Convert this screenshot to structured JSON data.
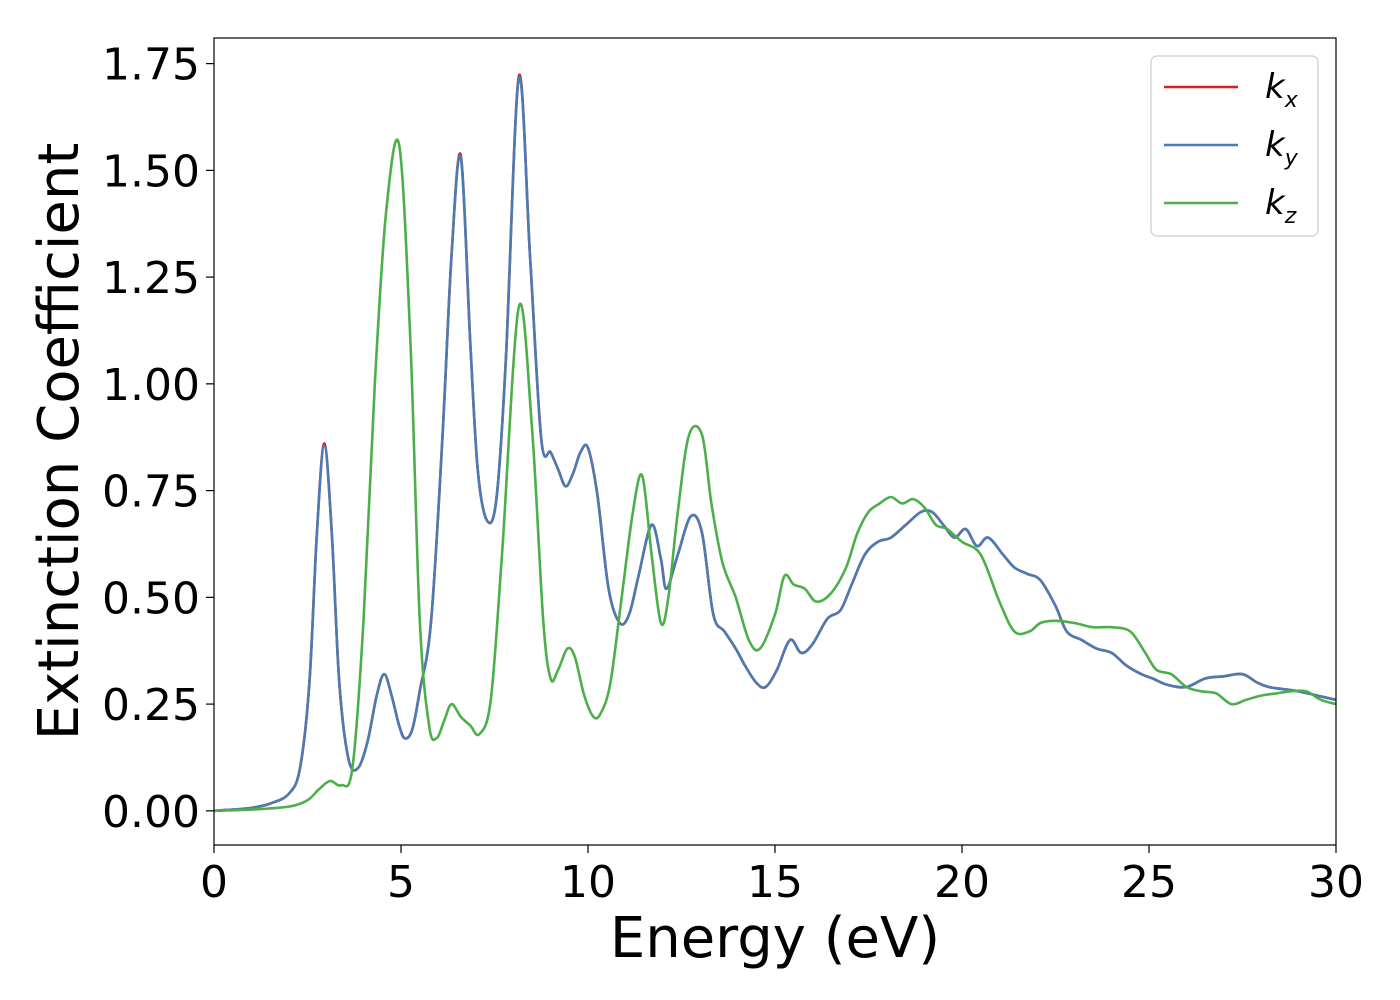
{
  "chart_data": {
    "type": "line",
    "title": "",
    "xlabel": "Energy (eV)",
    "ylabel": "Extinction Coefficient",
    "xlim": [
      0,
      30
    ],
    "ylim": [
      -0.08,
      1.81
    ],
    "xticks": [
      0,
      5,
      10,
      15,
      20,
      25,
      30
    ],
    "xtick_labels": [
      "0",
      "5",
      "10",
      "15",
      "20",
      "25",
      "30"
    ],
    "yticks": [
      0.0,
      0.25,
      0.5,
      0.75,
      1.0,
      1.25,
      1.5,
      1.75
    ],
    "ytick_labels": [
      "0.00",
      "0.25",
      "0.50",
      "0.75",
      "1.00",
      "1.25",
      "1.50",
      "1.75"
    ],
    "grid": false,
    "legend": "top-right",
    "series": [
      {
        "name": "k",
        "subscript": "x",
        "color": "#e41a1c",
        "x": [
          0,
          0.5,
          1.0,
          1.5,
          2.0,
          2.3,
          2.55,
          2.75,
          2.95,
          3.15,
          3.35,
          3.6,
          3.85,
          4.1,
          4.35,
          4.55,
          4.75,
          4.95,
          5.1,
          5.3,
          5.5,
          5.8,
          6.1,
          6.35,
          6.6,
          6.85,
          7.05,
          7.3,
          7.55,
          7.8,
          8.15,
          8.45,
          8.75,
          9.0,
          9.2,
          9.4,
          9.6,
          9.8,
          10.0,
          10.25,
          10.55,
          10.85,
          11.1,
          11.35,
          11.7,
          11.95,
          12.1,
          12.4,
          12.75,
          13.05,
          13.35,
          13.65,
          13.95,
          14.2,
          14.5,
          14.75,
          15.05,
          15.4,
          15.7,
          16.0,
          16.4,
          16.75,
          17.05,
          17.4,
          17.75,
          18.1,
          18.5,
          18.9,
          19.2,
          19.5,
          19.8,
          20.1,
          20.4,
          20.7,
          21.1,
          21.4,
          21.75,
          22.1,
          22.5,
          22.8,
          23.2,
          23.6,
          24.0,
          24.4,
          24.8,
          25.1,
          25.5,
          26.0,
          26.5,
          27.0,
          27.5,
          27.9,
          28.2,
          28.6,
          29.0,
          29.5,
          30.0
        ],
        "y": [
          0.0,
          0.003,
          0.007,
          0.017,
          0.04,
          0.1,
          0.3,
          0.65,
          0.86,
          0.65,
          0.3,
          0.12,
          0.1,
          0.16,
          0.27,
          0.32,
          0.27,
          0.2,
          0.17,
          0.19,
          0.28,
          0.44,
          0.86,
          1.3,
          1.535,
          1.1,
          0.8,
          0.68,
          0.73,
          1.05,
          1.72,
          1.3,
          0.87,
          0.84,
          0.8,
          0.76,
          0.79,
          0.84,
          0.85,
          0.74,
          0.52,
          0.44,
          0.46,
          0.55,
          0.67,
          0.59,
          0.52,
          0.6,
          0.69,
          0.65,
          0.46,
          0.42,
          0.38,
          0.34,
          0.3,
          0.29,
          0.33,
          0.4,
          0.37,
          0.39,
          0.45,
          0.47,
          0.53,
          0.6,
          0.63,
          0.64,
          0.67,
          0.7,
          0.7,
          0.67,
          0.64,
          0.66,
          0.62,
          0.64,
          0.6,
          0.57,
          0.555,
          0.54,
          0.48,
          0.42,
          0.4,
          0.38,
          0.37,
          0.34,
          0.32,
          0.31,
          0.295,
          0.29,
          0.31,
          0.315,
          0.32,
          0.3,
          0.29,
          0.285,
          0.28,
          0.27,
          0.26
        ]
      },
      {
        "name": "k",
        "subscript": "y",
        "color": "#4a7cb3",
        "x": [
          0,
          0.5,
          1.0,
          1.5,
          2.0,
          2.3,
          2.55,
          2.75,
          2.95,
          3.15,
          3.35,
          3.6,
          3.85,
          4.1,
          4.35,
          4.55,
          4.75,
          4.95,
          5.1,
          5.3,
          5.5,
          5.8,
          6.1,
          6.35,
          6.6,
          6.85,
          7.05,
          7.3,
          7.55,
          7.8,
          8.15,
          8.45,
          8.75,
          9.0,
          9.2,
          9.4,
          9.6,
          9.8,
          10.0,
          10.25,
          10.55,
          10.85,
          11.1,
          11.35,
          11.7,
          11.95,
          12.1,
          12.4,
          12.75,
          13.05,
          13.35,
          13.65,
          13.95,
          14.2,
          14.5,
          14.75,
          15.05,
          15.4,
          15.7,
          16.0,
          16.4,
          16.75,
          17.05,
          17.4,
          17.75,
          18.1,
          18.5,
          18.9,
          19.2,
          19.5,
          19.8,
          20.1,
          20.4,
          20.7,
          21.1,
          21.4,
          21.75,
          22.1,
          22.5,
          22.8,
          23.2,
          23.6,
          24.0,
          24.4,
          24.8,
          25.1,
          25.5,
          26.0,
          26.5,
          27.0,
          27.5,
          27.9,
          28.2,
          28.6,
          29.0,
          29.5,
          30.0
        ],
        "y": [
          0.0,
          0.003,
          0.007,
          0.017,
          0.04,
          0.1,
          0.3,
          0.65,
          0.855,
          0.65,
          0.3,
          0.12,
          0.1,
          0.16,
          0.27,
          0.32,
          0.27,
          0.2,
          0.17,
          0.19,
          0.28,
          0.44,
          0.86,
          1.3,
          1.53,
          1.1,
          0.8,
          0.68,
          0.73,
          1.05,
          1.715,
          1.3,
          0.87,
          0.84,
          0.8,
          0.76,
          0.79,
          0.84,
          0.85,
          0.74,
          0.52,
          0.44,
          0.46,
          0.55,
          0.67,
          0.59,
          0.52,
          0.6,
          0.69,
          0.65,
          0.46,
          0.42,
          0.38,
          0.34,
          0.3,
          0.29,
          0.33,
          0.4,
          0.37,
          0.39,
          0.45,
          0.47,
          0.53,
          0.6,
          0.63,
          0.64,
          0.67,
          0.7,
          0.7,
          0.67,
          0.64,
          0.66,
          0.62,
          0.64,
          0.6,
          0.57,
          0.555,
          0.54,
          0.48,
          0.42,
          0.4,
          0.38,
          0.37,
          0.34,
          0.32,
          0.31,
          0.295,
          0.29,
          0.31,
          0.315,
          0.32,
          0.3,
          0.29,
          0.285,
          0.28,
          0.27,
          0.26
        ]
      },
      {
        "name": "k",
        "subscript": "z",
        "color": "#4daf4a",
        "x": [
          0,
          1.0,
          2.0,
          2.5,
          2.8,
          3.1,
          3.4,
          3.7,
          4.0,
          4.3,
          4.6,
          4.95,
          5.25,
          5.5,
          5.75,
          5.95,
          6.15,
          6.35,
          6.6,
          6.85,
          7.1,
          7.4,
          7.7,
          8.15,
          8.5,
          8.8,
          9.0,
          9.2,
          9.45,
          9.65,
          9.9,
          10.15,
          10.35,
          10.6,
          10.9,
          11.2,
          11.45,
          11.7,
          11.95,
          12.15,
          12.4,
          12.7,
          13.05,
          13.3,
          13.6,
          13.95,
          14.3,
          14.6,
          15.0,
          15.25,
          15.5,
          15.8,
          16.1,
          16.5,
          16.9,
          17.2,
          17.5,
          17.8,
          18.1,
          18.4,
          18.7,
          19.0,
          19.3,
          19.6,
          20.0,
          20.5,
          21.0,
          21.4,
          21.8,
          22.1,
          22.5,
          23.0,
          23.5,
          24.0,
          24.5,
          24.9,
          25.2,
          25.6,
          26.0,
          26.4,
          26.8,
          27.2,
          27.6,
          28.0,
          28.4,
          28.8,
          29.2,
          29.6,
          30.0
        ],
        "y": [
          0.0,
          0.003,
          0.01,
          0.025,
          0.05,
          0.07,
          0.06,
          0.1,
          0.45,
          1.0,
          1.4,
          1.56,
          1.1,
          0.45,
          0.2,
          0.17,
          0.21,
          0.25,
          0.22,
          0.2,
          0.18,
          0.26,
          0.6,
          1.18,
          0.9,
          0.45,
          0.31,
          0.33,
          0.38,
          0.36,
          0.27,
          0.22,
          0.23,
          0.3,
          0.5,
          0.7,
          0.785,
          0.6,
          0.44,
          0.5,
          0.7,
          0.88,
          0.88,
          0.72,
          0.58,
          0.5,
          0.4,
          0.38,
          0.46,
          0.55,
          0.53,
          0.52,
          0.49,
          0.51,
          0.57,
          0.65,
          0.7,
          0.72,
          0.735,
          0.72,
          0.73,
          0.71,
          0.67,
          0.66,
          0.63,
          0.6,
          0.49,
          0.42,
          0.42,
          0.44,
          0.445,
          0.44,
          0.43,
          0.43,
          0.42,
          0.37,
          0.33,
          0.32,
          0.29,
          0.28,
          0.275,
          0.25,
          0.26,
          0.27,
          0.275,
          0.28,
          0.28,
          0.26,
          0.25
        ]
      }
    ]
  }
}
